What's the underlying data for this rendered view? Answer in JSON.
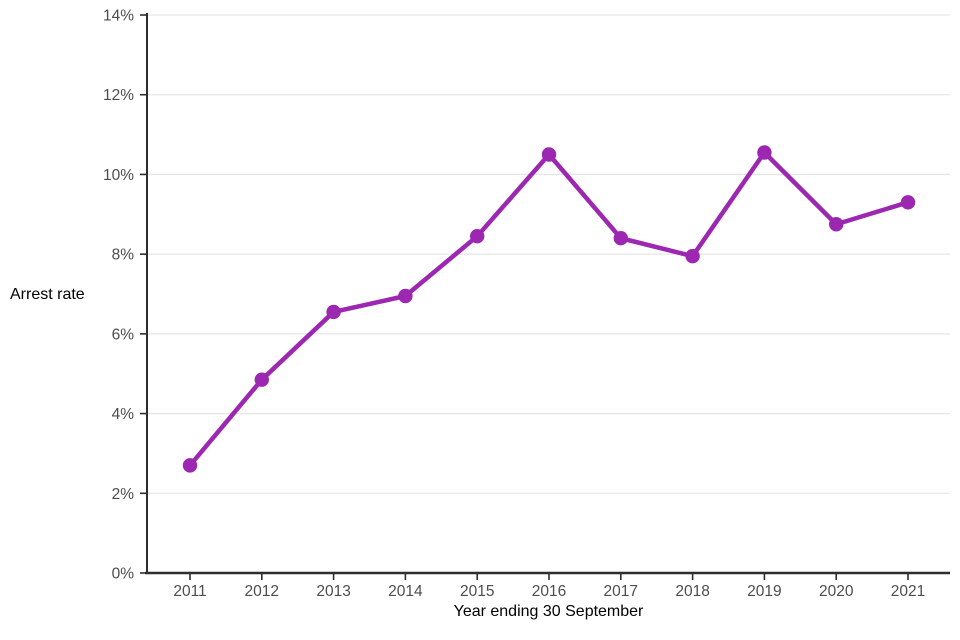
{
  "page": {
    "background": "#ffffff"
  },
  "chart_data": {
    "type": "line",
    "title": "",
    "xlabel": "Year ending 30 September",
    "ylabel": "Arrest rate",
    "categories": [
      "2011",
      "2012",
      "2013",
      "2014",
      "2015",
      "2016",
      "2017",
      "2018",
      "2019",
      "2020",
      "2021"
    ],
    "series": [
      {
        "name": "Arrest rate",
        "values": [
          2.7,
          4.85,
          6.55,
          6.95,
          8.45,
          10.5,
          8.4,
          7.95,
          10.55,
          8.75,
          9.3
        ]
      }
    ],
    "ylim": [
      0,
      14
    ],
    "yticks": [
      {
        "value": 0,
        "label": "0%"
      },
      {
        "value": 2,
        "label": "2%"
      },
      {
        "value": 4,
        "label": "4%"
      },
      {
        "value": 6,
        "label": "6%"
      },
      {
        "value": 8,
        "label": "8%"
      },
      {
        "value": 10,
        "label": "10%"
      },
      {
        "value": 12,
        "label": "12%"
      },
      {
        "value": 14,
        "label": "14%"
      }
    ],
    "grid": "horizontal",
    "legend": "none",
    "colors": {
      "line": "#9C27B0",
      "marker": "#9C27B0",
      "gridline": "#E6E6E6",
      "axis": "#2E2E2E",
      "tick_label": "#4D4D4D",
      "axis_title": "#000000"
    }
  }
}
